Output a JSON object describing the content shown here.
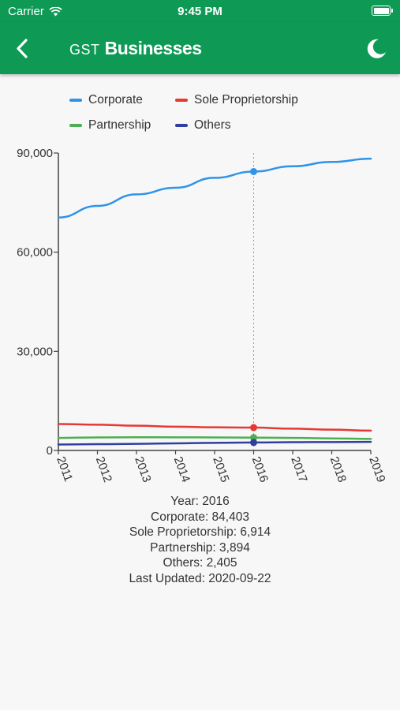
{
  "status_bar": {
    "carrier": "Carrier",
    "time": "9:45 PM"
  },
  "app_bar": {
    "title_prefix": "GST",
    "title_main": "Businesses",
    "back_icon": "chevron-left-icon",
    "theme_icon": "moon-icon"
  },
  "colors": {
    "brand": "#0e9a55",
    "corporate": "#2e94e8",
    "sole_proprietorship": "#e53935",
    "partnership": "#4caf50",
    "others": "#303f9f"
  },
  "chart_data": {
    "type": "line",
    "x": [
      "2011",
      "2012",
      "2013",
      "2014",
      "2015",
      "2016",
      "2017",
      "2018",
      "2019"
    ],
    "ylim": [
      0,
      90000
    ],
    "yticks": [
      0,
      30000,
      60000,
      90000
    ],
    "ytick_labels": [
      "0",
      "30,000",
      "60,000",
      "90,000"
    ],
    "legend_position": "top",
    "highlight_x": "2016",
    "series": [
      {
        "name": "Corporate",
        "color": "#2e94e8",
        "values": [
          70500,
          74000,
          77500,
          79500,
          82500,
          84403,
          86000,
          87300,
          88300
        ]
      },
      {
        "name": "Sole Proprietorship",
        "color": "#e53935",
        "values": [
          8000,
          7800,
          7500,
          7200,
          7000,
          6914,
          6600,
          6300,
          6000
        ]
      },
      {
        "name": "Partnership",
        "color": "#4caf50",
        "values": [
          3800,
          3950,
          4000,
          3980,
          3950,
          3894,
          3800,
          3650,
          3500
        ]
      },
      {
        "name": "Others",
        "color": "#303f9f",
        "values": [
          1800,
          1900,
          2000,
          2150,
          2300,
          2405,
          2500,
          2550,
          2600
        ]
      }
    ]
  },
  "info": {
    "year": "Year: 2016",
    "corporate": "Corporate: 84,403",
    "sole": "Sole Proprietorship: 6,914",
    "partnership": "Partnership: 3,894",
    "others": "Others: 2,405",
    "updated": "Last Updated: 2020-09-22"
  }
}
